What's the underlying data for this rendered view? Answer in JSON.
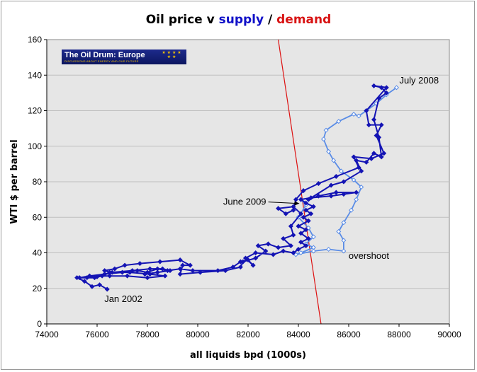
{
  "title": {
    "main": "Oil price v ",
    "supply": "supply",
    "sep": " / ",
    "demand": "demand"
  },
  "logo": {
    "title": "The Oil Drum: Europe",
    "subtitle": "DISCUSSIONS ABOUT ENERGY AND OUR FUTURE",
    "stars": "★ ★ ★ ★ ★ ★",
    "icon": "eu-stars-icon"
  },
  "colors": {
    "dark_series": "#1414b4",
    "light_series": "#5a8ce6",
    "demand_line": "#dd1111",
    "plot_bg": "#e6e6e6",
    "grid": "#bfbfbf"
  },
  "chart_data": {
    "type": "line",
    "title": "Oil price v supply / demand",
    "xlabel": "all liquids bpd (1000s)",
    "ylabel": "WTI $ per barrel",
    "xlim": [
      74000,
      90000
    ],
    "ylim": [
      0,
      160
    ],
    "xticks": [
      74000,
      76000,
      78000,
      80000,
      82000,
      84000,
      86000,
      88000,
      90000
    ],
    "yticks": [
      0,
      20,
      40,
      60,
      80,
      100,
      120,
      140,
      160
    ],
    "grid": "horizontal",
    "legend": "none",
    "series": [
      {
        "style": "dark",
        "points": [
          [
            76400,
            19.5
          ],
          [
            76100,
            22
          ],
          [
            75800,
            21
          ],
          [
            75500,
            24
          ],
          [
            75200,
            26
          ],
          [
            76000,
            26.5
          ],
          [
            76300,
            28
          ],
          [
            77000,
            29
          ],
          [
            77600,
            30
          ],
          [
            78000,
            29
          ],
          [
            78400,
            31
          ],
          [
            78800,
            30
          ],
          [
            79300,
            31
          ],
          [
            79800,
            30
          ],
          [
            80800,
            30
          ],
          [
            81400,
            32
          ],
          [
            81700,
            35
          ],
          [
            82000,
            36
          ],
          [
            82200,
            33
          ],
          [
            81900,
            37
          ],
          [
            82300,
            40
          ],
          [
            83000,
            39
          ],
          [
            83400,
            41
          ],
          [
            83800,
            40
          ],
          [
            84000,
            42
          ],
          [
            84300,
            44
          ],
          [
            84100,
            46
          ],
          [
            84400,
            48
          ],
          [
            84100,
            51
          ],
          [
            84300,
            53
          ],
          [
            84000,
            55
          ],
          [
            84400,
            58
          ],
          [
            84200,
            60
          ],
          [
            84500,
            62
          ],
          [
            84300,
            64
          ],
          [
            84600,
            66
          ],
          [
            84300,
            68
          ],
          [
            84100,
            70
          ],
          [
            84500,
            71
          ],
          [
            85300,
            72
          ],
          [
            85800,
            73
          ],
          [
            86300,
            74
          ],
          [
            85500,
            74
          ],
          [
            84800,
            72
          ],
          [
            84400,
            70
          ],
          [
            85300,
            78
          ],
          [
            85800,
            80
          ],
          [
            86500,
            86
          ],
          [
            86300,
            92
          ],
          [
            86700,
            91
          ],
          [
            87000,
            96
          ],
          [
            87300,
            94
          ],
          [
            87200,
            105
          ],
          [
            87000,
            115
          ],
          [
            87200,
            127
          ],
          [
            87500,
            130
          ],
          [
            87300,
            133
          ],
          [
            87000,
            134
          ],
          [
            87500,
            133
          ],
          [
            86700,
            120
          ],
          [
            86800,
            112
          ],
          [
            87300,
            112
          ],
          [
            87100,
            106
          ],
          [
            87400,
            96
          ],
          [
            86900,
            93
          ],
          [
            86200,
            94
          ],
          [
            86400,
            88
          ],
          [
            85500,
            83
          ],
          [
            84800,
            79
          ],
          [
            84200,
            75
          ],
          [
            83900,
            70
          ],
          [
            83800,
            64
          ],
          [
            83500,
            62
          ],
          [
            83200,
            65
          ],
          [
            83800,
            66
          ],
          [
            84100,
            62
          ],
          [
            83700,
            55
          ],
          [
            83800,
            50
          ],
          [
            83400,
            48
          ],
          [
            83700,
            44
          ],
          [
            83200,
            43
          ],
          [
            82800,
            45
          ],
          [
            82400,
            44
          ],
          [
            82700,
            41
          ],
          [
            82300,
            37
          ],
          [
            81800,
            35
          ],
          [
            81700,
            32
          ],
          [
            81100,
            30
          ],
          [
            80100,
            29
          ],
          [
            79300,
            28
          ],
          [
            79400,
            33
          ],
          [
            79700,
            33
          ],
          [
            79300,
            36
          ],
          [
            78500,
            35
          ],
          [
            77700,
            34
          ],
          [
            77100,
            33
          ],
          [
            76700,
            31
          ],
          [
            76300,
            30
          ],
          [
            76500,
            29
          ],
          [
            77300,
            29
          ],
          [
            78100,
            28
          ],
          [
            78700,
            27
          ],
          [
            78000,
            26
          ],
          [
            77200,
            27
          ],
          [
            76500,
            27
          ],
          [
            76200,
            27
          ],
          [
            75900,
            26
          ],
          [
            75600,
            26
          ],
          [
            75300,
            26
          ],
          [
            75700,
            27
          ],
          [
            76300,
            28
          ],
          [
            76600,
            29
          ],
          [
            77400,
            30
          ],
          [
            78100,
            31
          ],
          [
            78600,
            31
          ],
          [
            78900,
            30
          ],
          [
            78400,
            29
          ],
          [
            77900,
            28
          ]
        ]
      },
      {
        "style": "light",
        "points": [
          [
            84100,
            70
          ],
          [
            84300,
            67
          ],
          [
            84000,
            60
          ],
          [
            84400,
            54
          ],
          [
            84600,
            49
          ],
          [
            84300,
            45
          ],
          [
            84600,
            43
          ],
          [
            84100,
            40
          ],
          [
            83900,
            39
          ],
          [
            84600,
            41
          ],
          [
            85200,
            42
          ],
          [
            85800,
            41
          ],
          [
            85800,
            47
          ],
          [
            85600,
            52
          ],
          [
            85800,
            57
          ],
          [
            86100,
            64
          ],
          [
            86300,
            70
          ],
          [
            86500,
            77
          ],
          [
            86200,
            81
          ],
          [
            85700,
            86
          ],
          [
            85400,
            92
          ],
          [
            85200,
            97
          ],
          [
            85000,
            104
          ],
          [
            85100,
            109
          ],
          [
            85600,
            114
          ],
          [
            86200,
            118
          ],
          [
            86400,
            117
          ],
          [
            86700,
            120
          ],
          [
            87100,
            124
          ],
          [
            87500,
            129
          ],
          [
            87900,
            133
          ]
        ]
      }
    ],
    "demand_line": [
      [
        83200,
        160
      ],
      [
        84900,
        0
      ]
    ],
    "annotations": [
      {
        "text": "July 2008",
        "x": 87900,
        "y": 133
      },
      {
        "text": "June 2009",
        "x": 84100,
        "y": 69
      },
      {
        "text": "overshoot",
        "x": 85800,
        "y": 41
      },
      {
        "text": "Jan 2002",
        "x": 76400,
        "y": 19.5
      }
    ]
  }
}
